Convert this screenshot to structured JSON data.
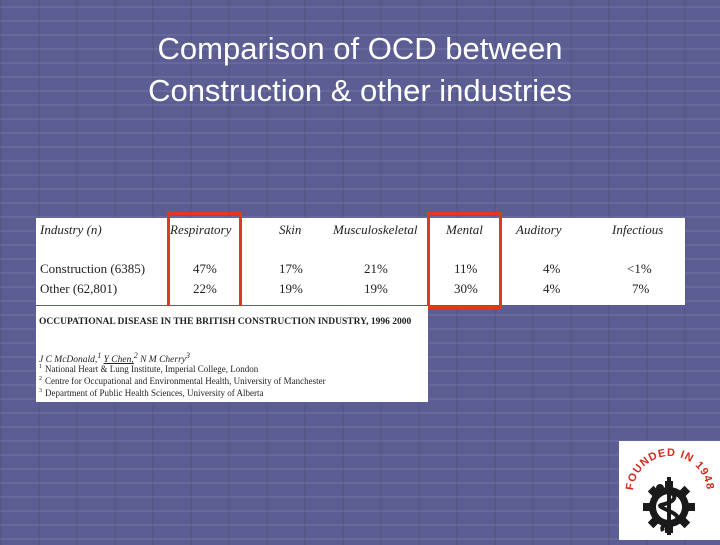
{
  "slide": {
    "title_line1": "Comparison of OCD between",
    "title_line2": "Construction & other industries"
  },
  "table": {
    "columns": [
      "Industry (n)",
      "Respiratory",
      "Skin",
      "Musculoskeletal",
      "Mental",
      "Auditory",
      "Infectious"
    ],
    "rows": [
      {
        "label": "Construction (6385)",
        "values": [
          "47%",
          "17%",
          "21%",
          "11%",
          "4%",
          "<1%"
        ]
      },
      {
        "label": "Other (62,801)",
        "values": [
          "22%",
          "19%",
          "19%",
          "30%",
          "4%",
          "7%"
        ]
      }
    ],
    "highlighted_columns": [
      "Respiratory",
      "Mental"
    ],
    "highlight_color": "#e0391e"
  },
  "reference": {
    "title": "OCCUPATIONAL DISEASE IN THE BRITISH CONSTRUCTION INDUSTRY, 1996 2000",
    "author1": "J C McDonald,",
    "author2": "Y Chen,",
    "author3": "N M Cherry",
    "affiliations": [
      {
        "num": "1",
        "text": "National Heart & Lung Institute, Imperial College, London"
      },
      {
        "num": "2",
        "text": "Centre for Occupational and Environmental Health, University of Manchester"
      },
      {
        "num": "3",
        "text": "Department of Public Health Sciences, University of Alberta"
      }
    ]
  },
  "logo": {
    "text": "FOUNDED IN 1948",
    "text_color": "#d42a1c",
    "icon": "caduceus-gear-emblem"
  },
  "colors": {
    "background": "#5b5d93",
    "title": "#ffffff"
  }
}
